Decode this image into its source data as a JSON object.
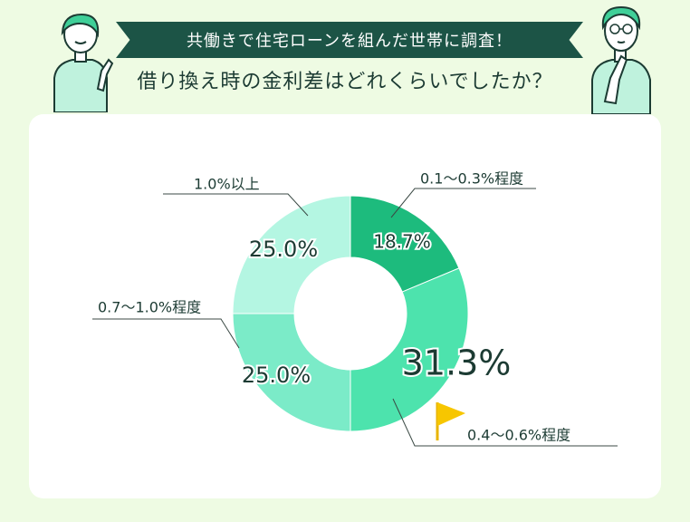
{
  "banner_text": "共働きで住宅ローンを組んだ世帯に調査！",
  "subtitle": "借り換え時の金利差はどれくらいでしたか？",
  "colors": {
    "banner_bg": "#1c5446",
    "page_bg": "#eefbe3"
  },
  "chart_data": {
    "type": "pie",
    "donut": true,
    "title": "",
    "slices": [
      {
        "label": "0.1〜0.3%程度",
        "value": 18.7,
        "value_label": "18.7%",
        "color": "#1dbb7d"
      },
      {
        "label": "0.4〜0.6%程度",
        "value": 31.3,
        "value_label": "31.3%",
        "color": "#4de3ad",
        "highlighted": true
      },
      {
        "label": "0.7〜1.0%程度",
        "value": 25.0,
        "value_label": "25.0%",
        "color": "#7bebc8"
      },
      {
        "label": "1.0%以上",
        "value": 25.0,
        "value_label": "25.0%",
        "color": "#b4f6e2"
      }
    ]
  }
}
